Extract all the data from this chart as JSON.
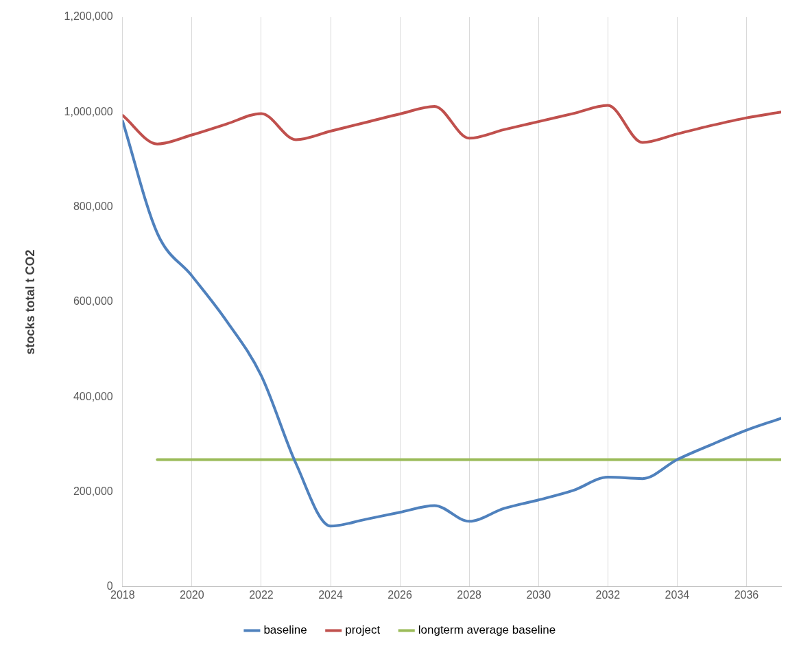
{
  "chart_data": {
    "type": "line",
    "ylabel": "stocks total t CO2",
    "x": [
      2018,
      2019,
      2020,
      2021,
      2022,
      2023,
      2024,
      2025,
      2026,
      2027,
      2028,
      2029,
      2030,
      2031,
      2032,
      2033,
      2034,
      2035,
      2036,
      2037
    ],
    "series": [
      {
        "name": "baseline",
        "color": "#4f81bd",
        "values": [
          981000,
          745000,
          655000,
          560000,
          445000,
          260000,
          128000,
          142000,
          157000,
          171000,
          138000,
          165000,
          183000,
          203000,
          231000,
          228000,
          268000,
          300000,
          330000,
          355000
        ]
      },
      {
        "name": "project",
        "color": "#c0504d",
        "values": [
          993000,
          933000,
          952000,
          975000,
          997000,
          942000,
          960000,
          978000,
          996000,
          1012000,
          945000,
          963000,
          980000,
          997000,
          1014000,
          936000,
          954000,
          972000,
          988000,
          1000000
        ]
      },
      {
        "name": "longterm average baseline",
        "color": "#9bbb59",
        "x": [
          2019,
          2037
        ],
        "values": [
          268000,
          268000
        ]
      }
    ],
    "xlim": [
      2018,
      2037
    ],
    "xticks": [
      2018,
      2020,
      2022,
      2024,
      2026,
      2028,
      2030,
      2032,
      2034,
      2036
    ],
    "ylim": [
      0,
      1200000
    ],
    "yticks": [
      {
        "value": 0,
        "label": "0"
      },
      {
        "value": 200000,
        "label": "200,000"
      },
      {
        "value": 400000,
        "label": "400,000"
      },
      {
        "value": 600000,
        "label": "600,000"
      },
      {
        "value": 800000,
        "label": "800,000"
      },
      {
        "value": 1000000,
        "label": "1,000,000"
      },
      {
        "value": 1200000,
        "label": "1,200,000"
      }
    ],
    "grid": "x",
    "legend": "bottom",
    "marker": "none",
    "line_style": "solid"
  }
}
